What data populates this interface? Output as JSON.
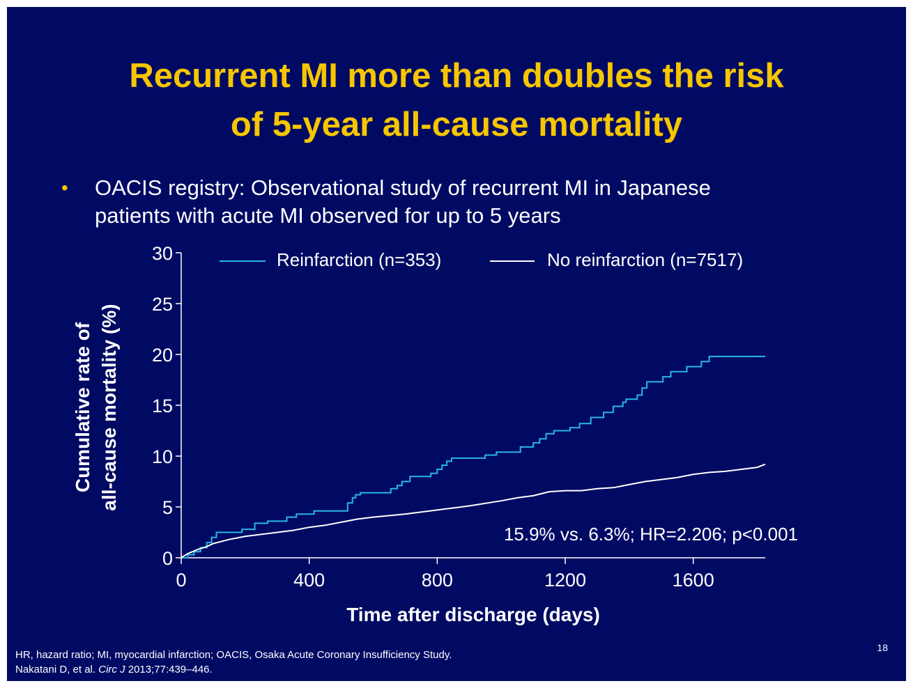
{
  "slide": {
    "title_line1": "Recurrent MI more than doubles the risk",
    "title_line2": "of 5-year all-cause mortality",
    "bullet_line1": "OACIS registry: Observational study of recurrent MI in Japanese",
    "bullet_line2": "patients with acute MI observed for up to 5 years",
    "bullet_symbol": "•",
    "footnote_line1": "HR, hazard ratio; MI, myocardial infarction; OACIS, Osaka Acute Coronary Insufficiency Study.",
    "footnote_line2_prefix": "Nakatani D, et al. ",
    "footnote_line2_journal": "Circ J",
    "footnote_line2_suffix": " 2013;77:439–446.",
    "page_number": "18",
    "colors": {
      "background": "#000a63",
      "title": "#f7c600",
      "text": "#ffffff",
      "reinfarction": "#29b6e8",
      "no_reinfarction": "#ffffff"
    }
  },
  "chart_data": {
    "type": "line",
    "title": "",
    "xlabel": "Time after discharge (days)",
    "ylabel_line1": "Cumulative rate of",
    "ylabel_line2": "all-cause mortality (%)",
    "xlim": [
      0,
      1825
    ],
    "ylim": [
      0,
      30
    ],
    "xticks": [
      0,
      400,
      800,
      1200,
      1600
    ],
    "yticks": [
      0,
      5,
      10,
      15,
      20,
      25,
      30
    ],
    "legend_position": "top",
    "annotation": "15.9% vs. 6.3%; HR=2.206; p<0.001",
    "series": [
      {
        "name": "Reinfarction (n=353)",
        "step": true,
        "points": [
          [
            0,
            0
          ],
          [
            20,
            0.3
          ],
          [
            40,
            0.6
          ],
          [
            60,
            1.0
          ],
          [
            80,
            1.5
          ],
          [
            95,
            2.0
          ],
          [
            110,
            2.5
          ],
          [
            190,
            2.8
          ],
          [
            230,
            3.4
          ],
          [
            270,
            3.6
          ],
          [
            330,
            4.0
          ],
          [
            360,
            4.3
          ],
          [
            415,
            4.6
          ],
          [
            520,
            5.4
          ],
          [
            535,
            5.9
          ],
          [
            545,
            6.2
          ],
          [
            560,
            6.4
          ],
          [
            655,
            6.8
          ],
          [
            675,
            7.1
          ],
          [
            690,
            7.5
          ],
          [
            715,
            8.0
          ],
          [
            780,
            8.3
          ],
          [
            800,
            8.7
          ],
          [
            815,
            9.1
          ],
          [
            830,
            9.5
          ],
          [
            845,
            9.8
          ],
          [
            950,
            10.1
          ],
          [
            985,
            10.4
          ],
          [
            1060,
            10.9
          ],
          [
            1100,
            11.3
          ],
          [
            1120,
            11.7
          ],
          [
            1140,
            12.2
          ],
          [
            1165,
            12.5
          ],
          [
            1215,
            12.8
          ],
          [
            1245,
            13.2
          ],
          [
            1280,
            13.8
          ],
          [
            1320,
            14.3
          ],
          [
            1350,
            14.9
          ],
          [
            1380,
            15.3
          ],
          [
            1390,
            15.6
          ],
          [
            1425,
            16.0
          ],
          [
            1440,
            16.7
          ],
          [
            1455,
            17.3
          ],
          [
            1505,
            17.8
          ],
          [
            1530,
            18.3
          ],
          [
            1580,
            18.8
          ],
          [
            1625,
            19.3
          ],
          [
            1650,
            19.8
          ],
          [
            1825,
            19.8
          ]
        ]
      },
      {
        "name": "No reinfarction (n=7517)",
        "step": false,
        "points": [
          [
            0,
            0
          ],
          [
            20,
            0.4
          ],
          [
            50,
            0.8
          ],
          [
            80,
            1.1
          ],
          [
            100,
            1.4
          ],
          [
            150,
            1.8
          ],
          [
            200,
            2.1
          ],
          [
            300,
            2.5
          ],
          [
            350,
            2.7
          ],
          [
            400,
            3.0
          ],
          [
            450,
            3.2
          ],
          [
            500,
            3.5
          ],
          [
            550,
            3.8
          ],
          [
            600,
            4.0
          ],
          [
            700,
            4.3
          ],
          [
            800,
            4.7
          ],
          [
            850,
            4.9
          ],
          [
            900,
            5.1
          ],
          [
            1000,
            5.6
          ],
          [
            1050,
            5.9
          ],
          [
            1100,
            6.1
          ],
          [
            1150,
            6.5
          ],
          [
            1200,
            6.6
          ],
          [
            1250,
            6.6
          ],
          [
            1300,
            6.8
          ],
          [
            1350,
            6.9
          ],
          [
            1400,
            7.2
          ],
          [
            1450,
            7.5
          ],
          [
            1500,
            7.7
          ],
          [
            1550,
            7.9
          ],
          [
            1600,
            8.2
          ],
          [
            1650,
            8.4
          ],
          [
            1700,
            8.5
          ],
          [
            1750,
            8.7
          ],
          [
            1800,
            8.9
          ],
          [
            1825,
            9.2
          ]
        ]
      }
    ]
  }
}
